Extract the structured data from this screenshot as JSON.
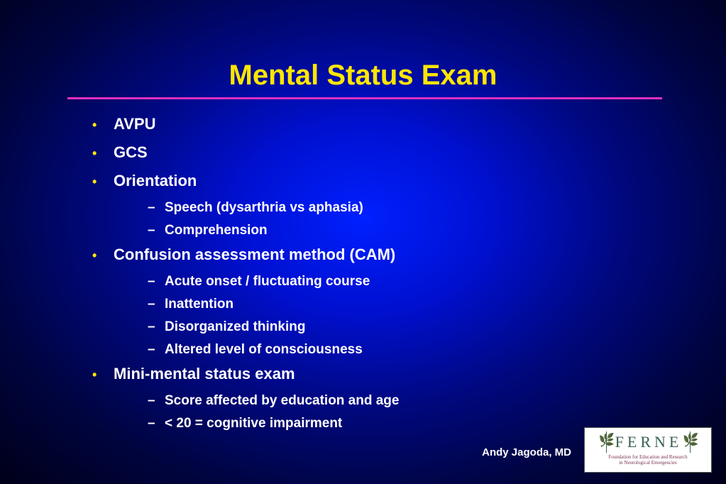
{
  "slide": {
    "title": "Mental Status Exam",
    "title_color": "#ffe600",
    "title_fontsize": 40,
    "underline_color": "#e030c0",
    "background_gradient": {
      "type": "radial",
      "center_color": "#0020ff",
      "edge_color": "#000018"
    },
    "bullets": [
      {
        "level": 1,
        "text": "AVPU"
      },
      {
        "level": 1,
        "text": "GCS"
      },
      {
        "level": 1,
        "text": "Orientation"
      },
      {
        "level": 2,
        "text": "Speech (dysarthria vs aphasia)"
      },
      {
        "level": 2,
        "text": "Comprehension"
      },
      {
        "level": 1,
        "text": "Confusion assessment method (CAM)"
      },
      {
        "level": 2,
        "text": "Acute onset / fluctuating course"
      },
      {
        "level": 2,
        "text": "Inattention"
      },
      {
        "level": 2,
        "text": "Disorganized thinking"
      },
      {
        "level": 2,
        "text": "Altered level of consciousness"
      },
      {
        "level": 1,
        "text": "Mini-mental status exam"
      },
      {
        "level": 2,
        "text": "Score affected by education and age"
      },
      {
        "level": 2,
        "text": "< 20 = cognitive impairment"
      }
    ],
    "bullet_text_color": "#ffffff",
    "bullet_l1_marker_color": "#ffe600",
    "bullet_l1_fontsize": 22,
    "bullet_l2_fontsize": 19,
    "author": "Andy Jagoda, MD",
    "logo": {
      "acronym": "FERNE",
      "subtitle_line1": "Foundation for Education and Research",
      "subtitle_line2": "in Neurological Emergencies",
      "text_color": "#3a6050",
      "subtitle_color": "#7a3050",
      "background": "#ffffff"
    }
  }
}
